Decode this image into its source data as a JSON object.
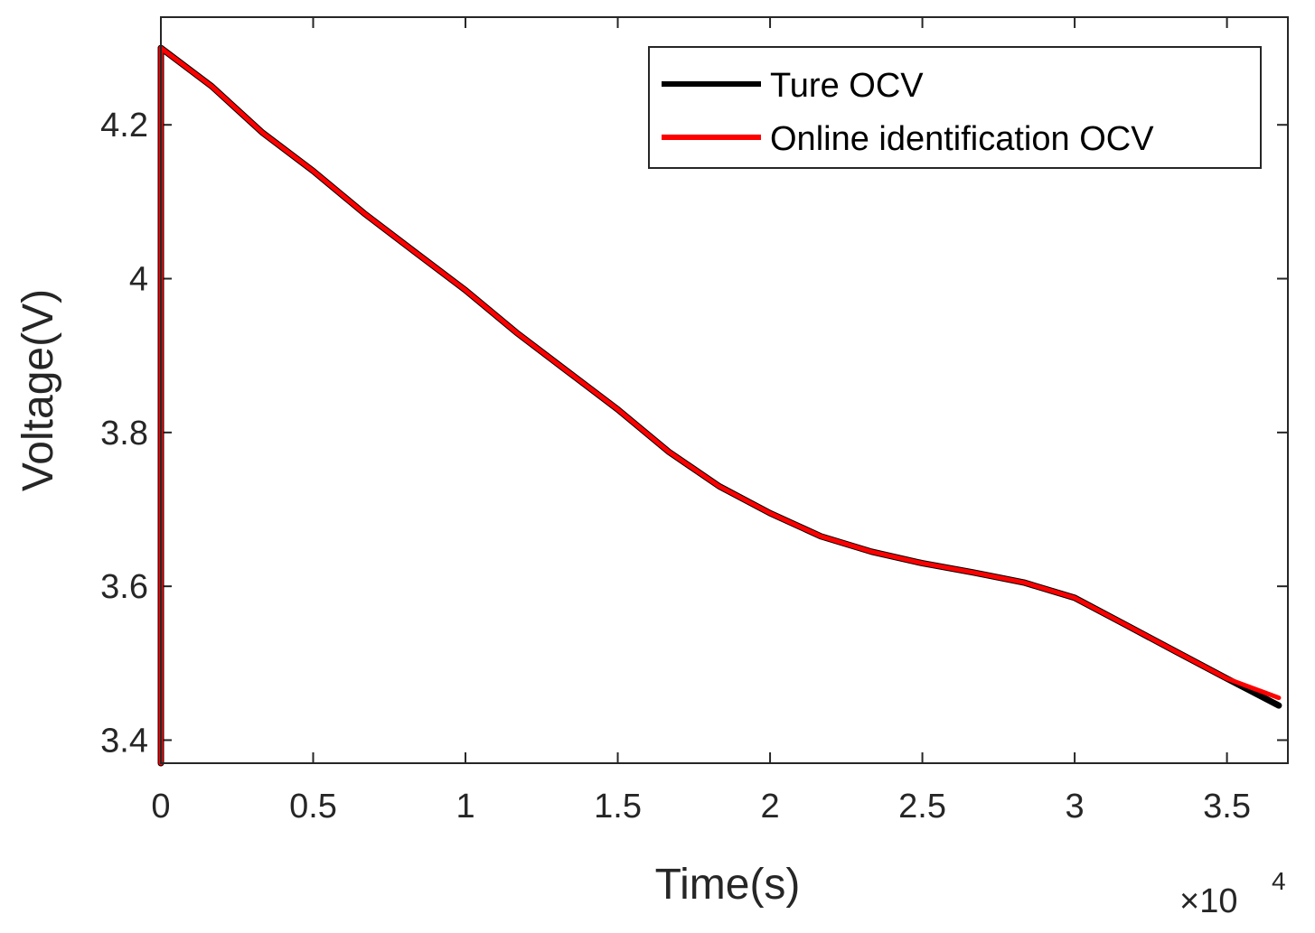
{
  "chart_data": {
    "type": "line",
    "title": "",
    "xlabel": "Time(s)",
    "ylabel": "Voltage(V)",
    "x_exponent_label": "×10",
    "x_exponent_power": "4",
    "xlim": [
      0,
      37000
    ],
    "ylim": [
      3.37,
      4.34
    ],
    "x_ticks": [
      0,
      5000,
      10000,
      15000,
      20000,
      25000,
      30000,
      35000
    ],
    "x_tick_labels": [
      "0",
      "0.5",
      "1",
      "1.5",
      "2",
      "2.5",
      "3",
      "3.5"
    ],
    "y_ticks": [
      3.4,
      3.6,
      3.8,
      4.0,
      4.2
    ],
    "y_tick_labels": [
      "3.4",
      "3.6",
      "3.8",
      "4",
      "4.2"
    ],
    "grid": false,
    "legend_position": "top-right",
    "step_times": [
      0,
      1670,
      3330,
      5000,
      6670,
      8330,
      10000,
      11670,
      13330,
      15000,
      16670,
      18330,
      20000,
      21670,
      23330,
      25000,
      26670,
      28330,
      30000,
      31670,
      33330,
      35000,
      36700
    ],
    "ocv_levels": [
      4.3,
      4.25,
      4.19,
      4.14,
      4.085,
      4.035,
      3.985,
      3.93,
      3.88,
      3.83,
      3.775,
      3.73,
      3.695,
      3.665,
      3.645,
      3.63,
      3.618,
      3.605,
      3.585,
      3.55,
      3.515,
      3.48,
      3.45
    ],
    "series": [
      {
        "name": "Ture OCV",
        "color": "#000000",
        "x": [
          0,
          0,
          1670,
          3330,
          5000,
          6670,
          8330,
          10000,
          11670,
          13330,
          15000,
          16670,
          18330,
          20000,
          21670,
          23330,
          25000,
          26670,
          28330,
          30000,
          31670,
          33330,
          35000,
          36700
        ],
        "y": [
          3.37,
          4.3,
          4.25,
          4.19,
          4.14,
          4.085,
          4.035,
          3.985,
          3.93,
          3.88,
          3.83,
          3.775,
          3.73,
          3.695,
          3.665,
          3.645,
          3.63,
          3.618,
          3.605,
          3.585,
          3.55,
          3.515,
          3.48,
          3.445
        ]
      },
      {
        "name": "Online identification OCV",
        "color": "#ff0000",
        "x": [
          0,
          0,
          1670,
          3330,
          5000,
          6670,
          8330,
          10000,
          11670,
          13330,
          15000,
          16670,
          18330,
          20000,
          21670,
          23330,
          25000,
          26670,
          28330,
          30000,
          31670,
          33330,
          35000,
          36700
        ],
        "y": [
          3.37,
          4.3,
          4.25,
          4.19,
          4.14,
          4.085,
          4.035,
          3.985,
          3.93,
          3.88,
          3.83,
          3.775,
          3.73,
          3.695,
          3.665,
          3.645,
          3.63,
          3.618,
          3.605,
          3.585,
          3.55,
          3.515,
          3.48,
          3.455
        ]
      }
    ]
  }
}
